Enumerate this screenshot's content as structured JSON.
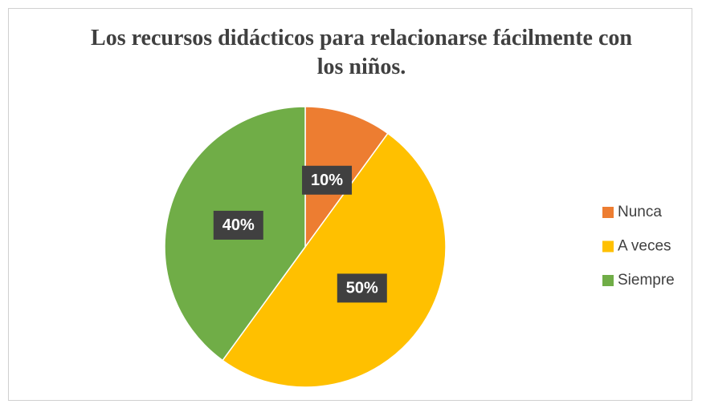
{
  "chart_data": {
    "type": "pie",
    "title": "Los recursos didácticos para relacionarse fácilmente con los niños.",
    "categories": [
      "Nunca",
      "A veces",
      "Siempre"
    ],
    "values": [
      10,
      50,
      40
    ],
    "value_labels": [
      "10%",
      "50%",
      "40%"
    ],
    "colors": [
      "#ed7d31",
      "#ffc000",
      "#70ad47"
    ],
    "legend": "right"
  }
}
